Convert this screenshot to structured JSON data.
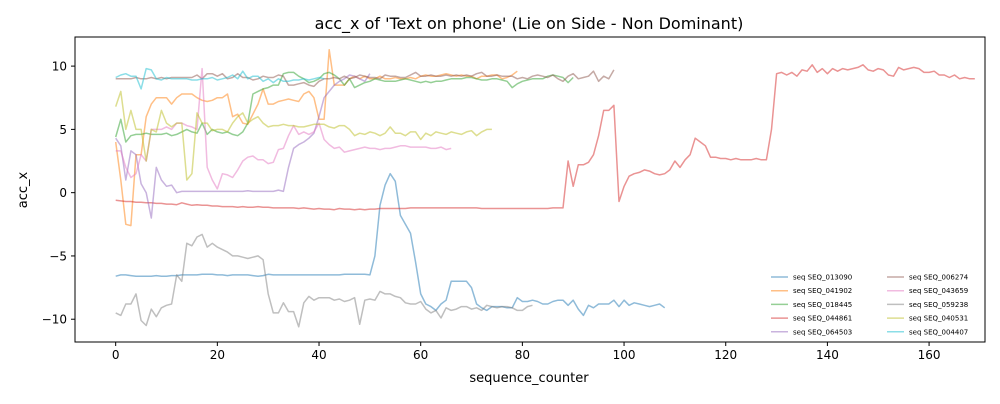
{
  "chart_data": {
    "type": "line",
    "title": "acc_x of 'Text on phone' (Lie on Side - Non Dominant)",
    "xlabel": "sequence_counter",
    "ylabel": "acc_x",
    "xlim": [
      -8,
      171
    ],
    "ylim": [
      -11.8,
      12.3
    ],
    "xticks": [
      0,
      20,
      40,
      60,
      80,
      100,
      120,
      140,
      160
    ],
    "yticks": [
      -10,
      -5,
      0,
      5,
      10
    ],
    "grid": false,
    "legend_position": "bottom-right",
    "legend_columns": 2,
    "series": [
      {
        "name": "seq SEQ_013090",
        "color": "#1f77b4",
        "x_start": 0,
        "values": [
          -6.6,
          -6.5,
          -6.5,
          -6.55,
          -6.6,
          -6.6,
          -6.6,
          -6.6,
          -6.55,
          -6.6,
          -6.6,
          -6.55,
          -6.55,
          -6.5,
          -6.5,
          -6.5,
          -6.5,
          -6.45,
          -6.45,
          -6.45,
          -6.5,
          -6.5,
          -6.55,
          -6.5,
          -6.5,
          -6.5,
          -6.5,
          -6.55,
          -6.6,
          -6.55,
          -6.45,
          -6.5,
          -6.5,
          -6.5,
          -6.5,
          -6.5,
          -6.5,
          -6.5,
          -6.5,
          -6.5,
          -6.5,
          -6.5,
          -6.5,
          -6.5,
          -6.5,
          -6.45,
          -6.45,
          -6.45,
          -6.45,
          -6.45,
          -6.5,
          -5.0,
          -1.0,
          0.6,
          1.5,
          0.9,
          -1.8,
          -2.5,
          -3.2,
          -5.5,
          -8.0,
          -8.8,
          -9.0,
          -9.3,
          -8.8,
          -8.5,
          -7.0,
          -7.0,
          -7.0,
          -7.0,
          -7.5,
          -8.8,
          -9.1,
          -9.3,
          -9.0,
          -9.0,
          -9.0,
          -9.1,
          -9.1,
          -8.3,
          -8.6,
          -8.6,
          -8.5,
          -8.6,
          -8.8,
          -8.8,
          -8.6,
          -8.5,
          -8.5,
          -8.9,
          -8.5,
          -9.2,
          -9.7,
          -8.9,
          -9.1,
          -8.8,
          -8.8,
          -8.8,
          -8.5,
          -9.0,
          -8.5,
          -8.9,
          -8.7,
          -8.8,
          -8.9,
          -9.0,
          -8.9,
          -8.8,
          -9.1
        ]
      },
      {
        "name": "seq SEQ_041902",
        "color": "#ff7f0e",
        "x_start": 0,
        "values": [
          4.0,
          1.0,
          -2.5,
          -2.6,
          3.0,
          3.0,
          6.0,
          7.0,
          7.5,
          7.5,
          7.5,
          7.0,
          7.5,
          7.8,
          7.8,
          7.8,
          7.5,
          7.3,
          7.2,
          7.3,
          7.5,
          7.5,
          7.8,
          6.0,
          6.2,
          5.5,
          5.4,
          6.2,
          7.0,
          8.2,
          7.0,
          7.0,
          7.2,
          7.3,
          7.4,
          7.3,
          7.2,
          7.8,
          8.0,
          7.5,
          5.8,
          5.8,
          11.3,
          8.5,
          8.5,
          8.5,
          9.0,
          9.2,
          9.0,
          9.2,
          9.0,
          9.0,
          9.2,
          9.0,
          9.0,
          9.1,
          9.0,
          9.0,
          9.1,
          9.0,
          9.2,
          9.3,
          9.2,
          9.2,
          9.3,
          9.4,
          9.3,
          9.2,
          9.3,
          9.2,
          9.2,
          9.0,
          9.2,
          9.2,
          9.3,
          9.3,
          9.0,
          9.1,
          9.3,
          9.6
        ]
      },
      {
        "name": "seq SEQ_018445",
        "color": "#2ca02c",
        "x_start": 0,
        "values": [
          4.4,
          5.8,
          4.0,
          4.5,
          4.6,
          4.6,
          4.7,
          4.6,
          4.6,
          4.6,
          4.7,
          4.5,
          4.6,
          4.8,
          5.0,
          4.8,
          4.7,
          5.5,
          4.6,
          5.0,
          4.8,
          4.7,
          4.8,
          4.6,
          4.5,
          4.8,
          5.5,
          7.8,
          8.0,
          8.2,
          8.3,
          8.5,
          8.5,
          9.4,
          9.5,
          9.5,
          9.2,
          9.0,
          8.7,
          8.8,
          9.0,
          9.4,
          9.5,
          9.3,
          9.0,
          8.5,
          9.0,
          8.3,
          8.5,
          8.7,
          8.8,
          9.0,
          8.9,
          8.8,
          8.8,
          8.8,
          8.9,
          9.0,
          8.9,
          8.8,
          8.7,
          8.8,
          8.7,
          8.8,
          8.8,
          8.9,
          9.0,
          9.0,
          9.0,
          9.1,
          9.1,
          9.0,
          8.9,
          8.9,
          9.0,
          9.0,
          8.9,
          8.8,
          8.3,
          8.6,
          8.8,
          8.9,
          9.0,
          9.0,
          9.0,
          9.2,
          9.3,
          9.2,
          9.1,
          8.7,
          9.1
        ]
      },
      {
        "name": "seq SEQ_044861",
        "color": "#d62728",
        "x_start": 0,
        "values": [
          -0.6,
          -0.65,
          -0.7,
          -0.7,
          -0.75,
          -0.75,
          -0.8,
          -0.8,
          -0.85,
          -0.85,
          -0.9,
          -0.9,
          -0.95,
          -0.8,
          -0.9,
          -1.0,
          -0.95,
          -1.0,
          -1.0,
          -1.05,
          -1.05,
          -1.1,
          -1.1,
          -1.1,
          -1.15,
          -1.1,
          -1.15,
          -1.15,
          -1.1,
          -1.15,
          -1.15,
          -1.2,
          -1.2,
          -1.2,
          -1.2,
          -1.2,
          -1.25,
          -1.2,
          -1.25,
          -1.3,
          -1.25,
          -1.3,
          -1.3,
          -1.35,
          -1.25,
          -1.3,
          -1.3,
          -1.35,
          -1.3,
          -1.35,
          -1.3,
          -1.3,
          -1.25,
          -1.25,
          -1.25,
          -1.25,
          -1.25,
          -1.25,
          -1.2,
          -1.2,
          -1.2,
          -1.2,
          -1.2,
          -1.2,
          -1.2,
          -1.2,
          -1.2,
          -1.2,
          -1.2,
          -1.2,
          -1.2,
          -1.2,
          -1.25,
          -1.25,
          -1.25,
          -1.25,
          -1.25,
          -1.25,
          -1.25,
          -1.25,
          -1.25,
          -1.25,
          -1.25,
          -1.25,
          -1.25,
          -1.25,
          -1.2,
          -1.2,
          -1.2,
          2.5,
          0.5,
          2.2,
          2.2,
          2.4,
          3.0,
          4.5,
          6.5,
          6.5,
          6.9,
          -0.7,
          0.5,
          1.3,
          1.5,
          1.6,
          1.8,
          1.7,
          1.5,
          1.4,
          1.5,
          1.8,
          2.5,
          2.0,
          2.6,
          3.0,
          4.3,
          4.0,
          3.7,
          2.8,
          2.8,
          2.7,
          2.7,
          2.6,
          2.7,
          2.6,
          2.6,
          2.6,
          2.7,
          2.6,
          2.6,
          5.0,
          9.4,
          9.5,
          9.3,
          9.5,
          9.2,
          9.7,
          9.6,
          10.1,
          9.5,
          9.8,
          9.4,
          9.8,
          9.6,
          9.8,
          9.7,
          9.8,
          9.9,
          10.1,
          9.7,
          9.6,
          9.8,
          9.7,
          9.3,
          9.2,
          9.9,
          9.7,
          9.8,
          9.9,
          9.8,
          9.5,
          9.5,
          9.6,
          9.3,
          9.3,
          9.1,
          9.3,
          9.0,
          9.1,
          9.0,
          9.0
        ]
      },
      {
        "name": "seq SEQ_064503",
        "color": "#9467bd",
        "x_start": 0,
        "values": [
          4.3,
          3.7,
          1.0,
          3.3,
          3.0,
          0.7,
          0.0,
          -2.0,
          2.0,
          1.0,
          0.5,
          0.6,
          0.0,
          0.1,
          0.1,
          0.1,
          0.1,
          0.1,
          0.1,
          0.1,
          0.1,
          0.1,
          0.1,
          0.1,
          0.1,
          0.1,
          0.15,
          0.1,
          0.1,
          0.1,
          0.1,
          0.1,
          0.2,
          0.1,
          2.0,
          3.5,
          3.8,
          4.0,
          4.3,
          4.7,
          6.0,
          7.5,
          8.0,
          8.5,
          8.8,
          9.0,
          9.3,
          9.2,
          9.0,
          8.8,
          9.4
        ]
      },
      {
        "name": "seq SEQ_006274",
        "color": "#8c564b",
        "x_start": 0,
        "values": [
          9.0,
          9.0,
          9.0,
          9.0,
          9.1,
          9.0,
          9.0,
          9.1,
          9.0,
          9.1,
          9.0,
          9.1,
          9.1,
          9.1,
          9.1,
          9.1,
          9.3,
          9.0,
          9.4,
          9.4,
          9.2,
          9.4,
          9.0,
          9.1,
          9.4,
          9.1,
          9.1,
          8.9,
          9.0,
          9.2,
          9.1,
          9.1,
          9.3,
          9.2,
          8.5,
          8.5,
          8.6,
          8.7,
          8.5,
          8.4,
          8.8,
          9.0,
          9.0,
          9.1,
          9.0,
          9.2,
          9.0,
          9.1,
          9.3,
          9.2,
          9.1,
          9.1,
          9.0,
          9.3,
          9.2,
          9.2,
          9.1,
          9.1,
          9.3,
          9.5,
          9.2,
          9.2,
          9.3,
          9.2,
          9.2,
          9.3,
          9.2,
          9.3,
          9.2,
          9.3,
          9.2,
          9.4,
          9.5,
          9.2,
          9.2,
          9.3,
          9.2,
          9.2,
          9.2,
          9.0,
          9.1,
          9.0,
          9.2,
          9.3,
          9.2,
          9.1,
          9.3,
          9.0,
          8.8,
          9.2,
          9.4,
          9.0,
          9.1,
          9.2,
          9.6,
          8.8,
          9.2,
          9.0,
          9.7
        ]
      },
      {
        "name": "seq SEQ_043659",
        "color": "#e377c2",
        "x_start": 0,
        "values": [
          3.3,
          3.3,
          2.0,
          1.2,
          1.5,
          3.0,
          2.5,
          5.0,
          5.0,
          5.0,
          5.2,
          5.0,
          5.5,
          5.5,
          5.3,
          5.2,
          5.0,
          9.8,
          2.0,
          1.0,
          0.3,
          1.5,
          1.4,
          1.2,
          1.8,
          2.5,
          2.8,
          2.9,
          2.6,
          2.6,
          2.3,
          2.4,
          3.4,
          3.5,
          4.5,
          5.3,
          4.6,
          4.8,
          4.6,
          4.8,
          5.5,
          4.2,
          3.8,
          3.5,
          3.6,
          3.2,
          3.3,
          3.4,
          3.5,
          3.6,
          3.5,
          3.5,
          3.4,
          3.5,
          3.5,
          3.6,
          3.7,
          3.7,
          3.6,
          3.6,
          3.6,
          3.6,
          3.5,
          3.5,
          3.6,
          3.4,
          3.5
        ]
      },
      {
        "name": "seq SEQ_059238",
        "color": "#7f7f7f",
        "x_start": 0,
        "values": [
          -9.5,
          -9.7,
          -8.8,
          -8.8,
          -8.0,
          -10.1,
          -10.5,
          -9.2,
          -9.8,
          -9.1,
          -8.9,
          -8.8,
          -6.5,
          -7.0,
          -4.0,
          -4.2,
          -3.5,
          -3.3,
          -4.3,
          -4.0,
          -4.3,
          -4.5,
          -4.7,
          -5.0,
          -5.0,
          -5.1,
          -5.2,
          -5.1,
          -5.0,
          -5.3,
          -8.0,
          -9.5,
          -9.5,
          -8.7,
          -9.4,
          -9.4,
          -10.6,
          -8.7,
          -8.2,
          -8.5,
          -8.3,
          -8.3,
          -8.3,
          -8.5,
          -8.4,
          -8.6,
          -8.5,
          -8.3,
          -10.4,
          -8.5,
          -8.4,
          -8.5,
          -7.8,
          -8.0,
          -8.0,
          -8.2,
          -8.3,
          -8.7,
          -8.8,
          -8.8,
          -8.6,
          -9.2,
          -9.5,
          -9.3,
          -9.9,
          -9.1,
          -9.3,
          -9.2,
          -9.0,
          -9.0,
          -9.2,
          -9.1,
          -9.3,
          -8.9,
          -9.0,
          -9.1,
          -9.0,
          -9.0,
          -9.1,
          -9.3,
          -9.3,
          -9.0,
          -8.9
        ]
      },
      {
        "name": "seq SEQ_040531",
        "color": "#bcbd22",
        "x_start": 0,
        "values": [
          6.8,
          8.0,
          5.0,
          6.5,
          5.0,
          5.0,
          2.5,
          5.0,
          4.8,
          6.5,
          5.5,
          5.2,
          5.5,
          5.5,
          1.0,
          1.5,
          6.3,
          5.5,
          5.5,
          4.9,
          5.0,
          5.0,
          4.8,
          5.5,
          6.0,
          6.3,
          5.5,
          5.8,
          6.0,
          5.5,
          5.2,
          5.3,
          5.3,
          5.4,
          5.3,
          5.3,
          5.2,
          5.2,
          5.3,
          5.4,
          5.4,
          5.4,
          5.2,
          5.1,
          5.3,
          5.3,
          5.0,
          4.5,
          4.7,
          4.6,
          4.8,
          4.7,
          4.5,
          4.7,
          5.2,
          4.7,
          4.7,
          4.5,
          4.8,
          4.8,
          4.2,
          4.7,
          4.5,
          4.8,
          4.7,
          4.6,
          4.8,
          4.7,
          4.6,
          4.8,
          4.9,
          4.5,
          4.8,
          5.0,
          5.0
        ]
      },
      {
        "name": "seq SEQ_004407",
        "color": "#17becf",
        "x_start": 0,
        "values": [
          9.1,
          9.3,
          9.4,
          9.2,
          9.2,
          8.2,
          9.8,
          9.7,
          9.0,
          8.9,
          9.1,
          9.0,
          9.0,
          9.0,
          9.0,
          8.9,
          8.9,
          9.0,
          9.0,
          9.1,
          8.9,
          9.0,
          9.1,
          9.3,
          9.0,
          9.6,
          9.0,
          9.2,
          9.2,
          8.8,
          9.0,
          8.7,
          9.0,
          8.8,
          8.8,
          8.9,
          8.9,
          9.0,
          8.9,
          9.0,
          9.1,
          9.0
        ]
      }
    ]
  }
}
